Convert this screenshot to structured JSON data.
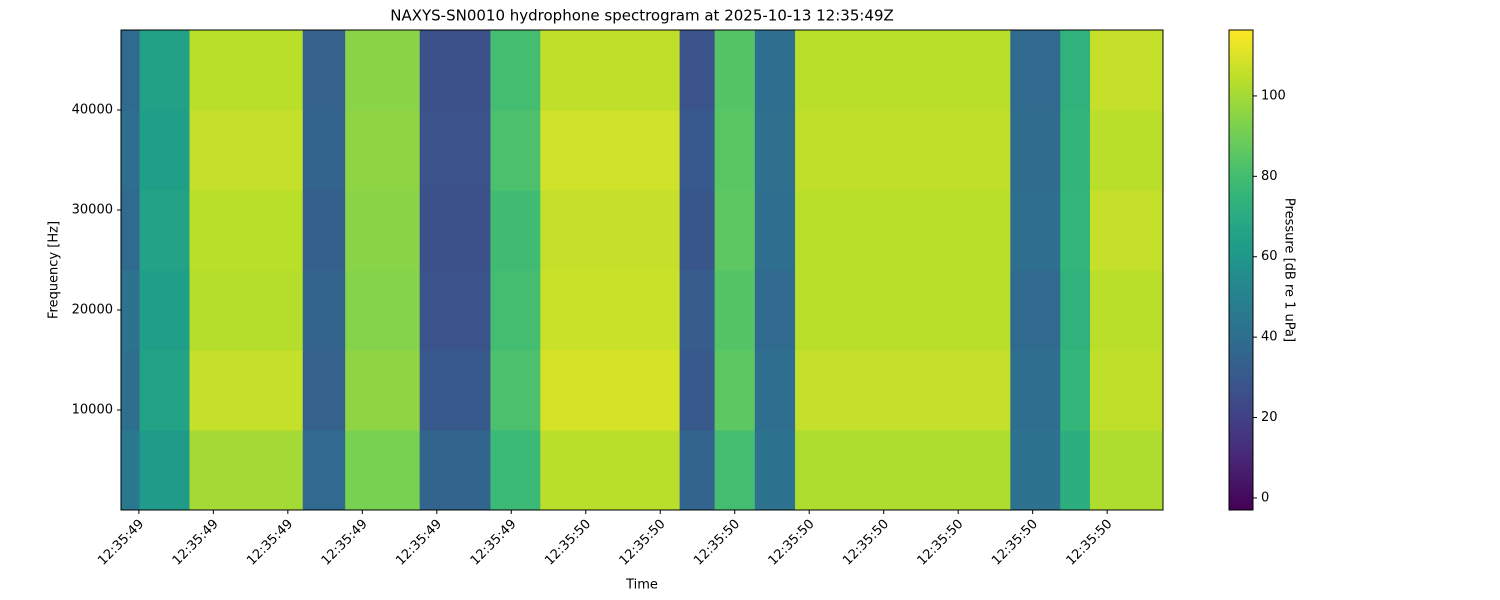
{
  "chart_data": {
    "type": "heatmap",
    "title": "NAXYS-SN0010 hydrophone spectrogram at 2025-10-13 12:35:49Z",
    "x_label": "Time",
    "y_label": "Frequency [Hz]",
    "colorbar_label": "Pressure [dB re 1 uPa]",
    "colormap": "viridis",
    "xlim": [
      -0.24,
      13.75
    ],
    "xticks": [
      {
        "value": 0,
        "label": "12:35:49"
      },
      {
        "value": 1,
        "label": "12:35:49"
      },
      {
        "value": 2,
        "label": "12:35:49"
      },
      {
        "value": 3,
        "label": "12:35:49"
      },
      {
        "value": 4,
        "label": "12:35:49"
      },
      {
        "value": 5,
        "label": "12:35:49"
      },
      {
        "value": 6,
        "label": "12:35:50"
      },
      {
        "value": 7,
        "label": "12:35:50"
      },
      {
        "value": 8,
        "label": "12:35:50"
      },
      {
        "value": 9,
        "label": "12:35:50"
      },
      {
        "value": 10,
        "label": "12:35:50"
      },
      {
        "value": 11,
        "label": "12:35:50"
      },
      {
        "value": 12,
        "label": "12:35:50"
      },
      {
        "value": 13,
        "label": "12:35:50"
      }
    ],
    "ylim": [
      0,
      48000
    ],
    "yticks": [
      10000,
      20000,
      30000,
      40000
    ],
    "clim": [
      -3,
      116.4
    ],
    "cticks": [
      0,
      20,
      40,
      60,
      80,
      100
    ],
    "x_edges": [
      -0.24,
      0.01,
      0.68,
      2.2,
      2.77,
      3.77,
      4.72,
      5.39,
      7.26,
      7.73,
      8.27,
      8.81,
      11.7,
      12.37,
      12.77,
      13.75
    ],
    "y_edges": [
      0,
      8000,
      16000,
      24000,
      32000,
      40000,
      48000
    ],
    "values": [
      [
        45,
        62,
        100,
        38,
        92,
        35,
        78,
        104,
        35,
        80,
        42,
        102,
        42,
        72,
        102
      ],
      [
        40,
        66,
        106,
        34,
        96,
        30,
        82,
        109,
        30,
        86,
        40,
        106,
        40,
        76,
        105
      ],
      [
        42,
        64,
        103,
        35,
        94,
        28,
        80,
        107,
        32,
        84,
        38,
        104,
        38,
        74,
        104
      ],
      [
        38,
        66,
        104,
        33,
        95,
        26,
        79,
        106,
        29,
        86,
        40,
        104,
        40,
        76,
        106
      ],
      [
        40,
        64,
        106,
        35,
        96,
        27,
        82,
        108,
        30,
        85,
        41,
        105,
        39,
        75,
        104
      ],
      [
        38,
        65,
        104,
        34,
        95,
        26,
        80,
        105,
        28,
        84,
        40,
        104,
        38,
        74,
        106
      ]
    ]
  }
}
